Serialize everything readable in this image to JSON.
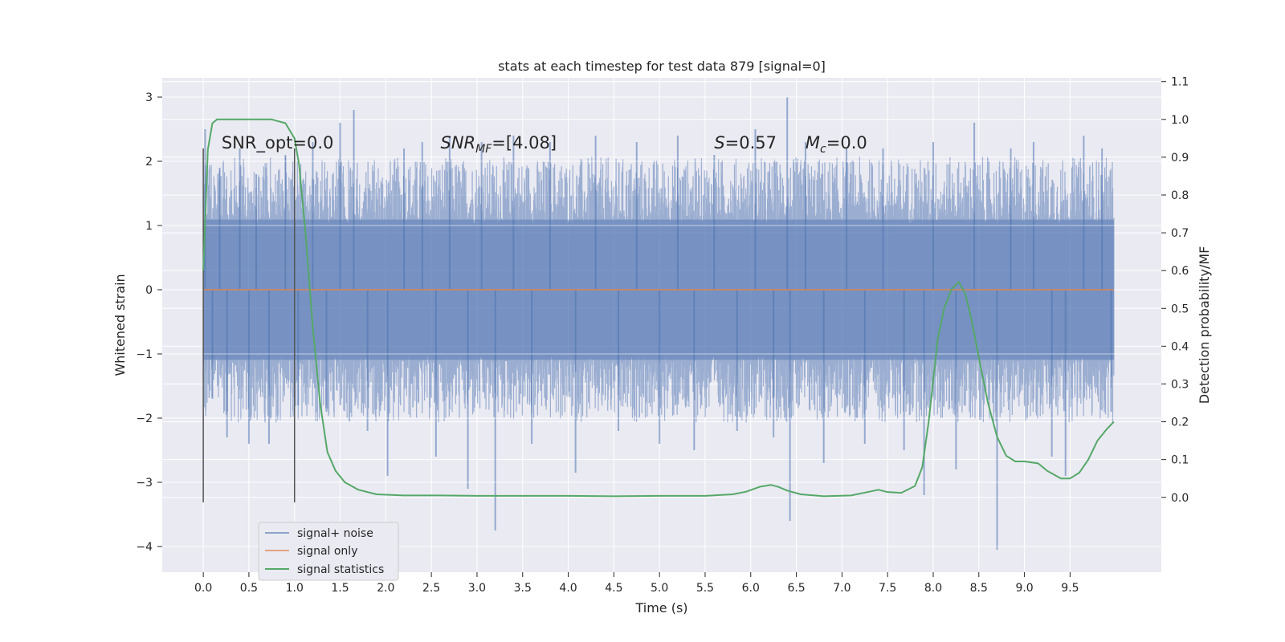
{
  "chart_data": {
    "type": "line",
    "title": "stats at each timestep for test data 879 [signal=0]",
    "xlabel": "Time (s)",
    "ylabel": "Whitened strain",
    "y2label": "Detection probability/MF",
    "xlim": [
      -0.45,
      10.5
    ],
    "ylim": [
      -4.4,
      3.3
    ],
    "y2lim": [
      -0.198,
      1.11
    ],
    "xticks": [
      0.0,
      0.5,
      1.0,
      1.5,
      2.0,
      2.5,
      3.0,
      3.5,
      4.0,
      4.5,
      5.0,
      5.5,
      6.0,
      6.5,
      7.0,
      7.5,
      8.0,
      8.5,
      9.0,
      9.5
    ],
    "xtick_labels": [
      "0.0",
      "0.5",
      "1.0",
      "1.5",
      "2.0",
      "2.5",
      "3.0",
      "3.5",
      "4.0",
      "4.5",
      "5.0",
      "5.5",
      "6.0",
      "6.5",
      "7.0",
      "7.5",
      "8.0",
      "8.5",
      "9.0",
      "9.5"
    ],
    "yticks": [
      -4,
      -3,
      -2,
      -1,
      0,
      1,
      2,
      3
    ],
    "ytick_labels": [
      "−4",
      "−3",
      "−2",
      "−1",
      "0",
      "1",
      "2",
      "3"
    ],
    "y2ticks": [
      0.0,
      0.1,
      0.2,
      0.3,
      0.4,
      0.5,
      0.6,
      0.7,
      0.8,
      0.9,
      1.0,
      1.1
    ],
    "y2tick_labels": [
      "0.0",
      "0.1",
      "0.2",
      "0.3",
      "0.4",
      "0.5",
      "0.6",
      "0.7",
      "0.8",
      "0.9",
      "1.0",
      "1.1"
    ],
    "grid": true,
    "legend_position": "lower-left",
    "colors": {
      "background": "#eaeaf2",
      "grid": "#ffffff",
      "noise": "#4c72b0",
      "signal": "#dd8452",
      "stats": "#55a868",
      "window_lines": "#555555"
    },
    "annotations": [
      {
        "text": "SNR_opt=0.0",
        "x": 0.2
      },
      {
        "text_italic": "SNR",
        "sub": "MF",
        "text": "=[4.08]",
        "x": 2.6
      },
      {
        "text_italic": "S",
        "text": "=0.57",
        "x": 5.6
      },
      {
        "text_italic": "M",
        "sub": "c",
        "text": "=0.0",
        "x": 6.6
      }
    ],
    "window_markers": [
      0.0,
      1.0
    ],
    "noise_envelope": {
      "x_start": 0.0,
      "x_end": 9.98,
      "band_low": -1.15,
      "band_high": 1.15
    },
    "noise_spikes": [
      {
        "x": 0.02,
        "y": 2.5
      },
      {
        "x": 0.1,
        "y": -1.7
      },
      {
        "x": 0.18,
        "y": 1.9
      },
      {
        "x": 0.26,
        "y": -2.3
      },
      {
        "x": 0.4,
        "y": 2.2
      },
      {
        "x": 0.5,
        "y": -2.4
      },
      {
        "x": 0.58,
        "y": 1.8
      },
      {
        "x": 0.72,
        "y": -2.4
      },
      {
        "x": 0.9,
        "y": 2.1
      },
      {
        "x": 1.04,
        "y": -1.8
      },
      {
        "x": 1.2,
        "y": 2.3
      },
      {
        "x": 1.35,
        "y": -1.9
      },
      {
        "x": 1.5,
        "y": 2.6
      },
      {
        "x": 1.65,
        "y": 2.8
      },
      {
        "x": 1.8,
        "y": -2.2
      },
      {
        "x": 2.02,
        "y": -2.9
      },
      {
        "x": 2.2,
        "y": 2.2
      },
      {
        "x": 2.4,
        "y": 2.3
      },
      {
        "x": 2.55,
        "y": -2.6
      },
      {
        "x": 2.7,
        "y": 2.4
      },
      {
        "x": 2.9,
        "y": -3.1
      },
      {
        "x": 3.05,
        "y": 2.3
      },
      {
        "x": 3.2,
        "y": -3.75
      },
      {
        "x": 3.4,
        "y": 2.4
      },
      {
        "x": 3.6,
        "y": -2.4
      },
      {
        "x": 3.8,
        "y": 2.3
      },
      {
        "x": 4.08,
        "y": -2.85
      },
      {
        "x": 4.3,
        "y": 2.4
      },
      {
        "x": 4.55,
        "y": -2.2
      },
      {
        "x": 4.75,
        "y": 2.3
      },
      {
        "x": 5.0,
        "y": -2.4
      },
      {
        "x": 5.2,
        "y": 2.4
      },
      {
        "x": 5.38,
        "y": -2.5
      },
      {
        "x": 5.6,
        "y": 2.1
      },
      {
        "x": 5.85,
        "y": -2.2
      },
      {
        "x": 6.05,
        "y": 2.5
      },
      {
        "x": 6.25,
        "y": -2.3
      },
      {
        "x": 6.4,
        "y": 3.0
      },
      {
        "x": 6.43,
        "y": -3.6
      },
      {
        "x": 6.6,
        "y": 2.3
      },
      {
        "x": 6.8,
        "y": -2.7
      },
      {
        "x": 7.05,
        "y": 2.2
      },
      {
        "x": 7.25,
        "y": -2.4
      },
      {
        "x": 7.45,
        "y": 2.2
      },
      {
        "x": 7.68,
        "y": -2.5
      },
      {
        "x": 7.9,
        "y": -3.2
      },
      {
        "x": 8.0,
        "y": 2.3
      },
      {
        "x": 8.25,
        "y": -2.8
      },
      {
        "x": 8.45,
        "y": 2.6
      },
      {
        "x": 8.7,
        "y": -4.05
      },
      {
        "x": 8.85,
        "y": 2.2
      },
      {
        "x": 9.1,
        "y": 2.3
      },
      {
        "x": 9.3,
        "y": -2.6
      },
      {
        "x": 9.45,
        "y": -2.9
      },
      {
        "x": 9.65,
        "y": 2.4
      },
      {
        "x": 9.85,
        "y": 2.2
      },
      {
        "x": 9.95,
        "y": -1.9
      }
    ],
    "series": [
      {
        "name": "signal+ noise",
        "kind": "noise",
        "color": "#4c72b0"
      },
      {
        "name": "signal only",
        "kind": "signal",
        "color": "#dd8452",
        "x": [
          0.0,
          9.98
        ],
        "y": [
          0.0,
          0.0
        ]
      },
      {
        "name": "signal statistics",
        "kind": "stats",
        "color": "#55a868",
        "axis": "right",
        "x": [
          0.0,
          0.05,
          0.1,
          0.15,
          0.25,
          0.5,
          0.75,
          0.9,
          1.0,
          1.05,
          1.12,
          1.2,
          1.28,
          1.36,
          1.45,
          1.55,
          1.7,
          1.9,
          2.2,
          2.6,
          3.0,
          3.5,
          4.0,
          4.5,
          5.0,
          5.5,
          5.8,
          5.95,
          6.1,
          6.22,
          6.3,
          6.4,
          6.55,
          6.8,
          7.1,
          7.3,
          7.4,
          7.5,
          7.65,
          7.8,
          7.88,
          7.95,
          8.05,
          8.12,
          8.2,
          8.28,
          8.35,
          8.42,
          8.5,
          8.6,
          8.7,
          8.8,
          8.9,
          9.0,
          9.15,
          9.25,
          9.4,
          9.5,
          9.6,
          9.7,
          9.8,
          9.9,
          9.98
        ],
        "y": [
          0.6,
          0.92,
          0.99,
          1.0,
          1.0,
          1.0,
          1.0,
          0.99,
          0.95,
          0.88,
          0.7,
          0.45,
          0.25,
          0.12,
          0.07,
          0.04,
          0.02,
          0.008,
          0.005,
          0.005,
          0.004,
          0.004,
          0.004,
          0.003,
          0.004,
          0.004,
          0.008,
          0.015,
          0.028,
          0.033,
          0.028,
          0.018,
          0.008,
          0.003,
          0.005,
          0.015,
          0.02,
          0.014,
          0.012,
          0.03,
          0.08,
          0.2,
          0.42,
          0.5,
          0.55,
          0.57,
          0.54,
          0.47,
          0.37,
          0.25,
          0.16,
          0.11,
          0.095,
          0.095,
          0.09,
          0.07,
          0.05,
          0.05,
          0.065,
          0.1,
          0.15,
          0.18,
          0.2
        ]
      }
    ]
  }
}
